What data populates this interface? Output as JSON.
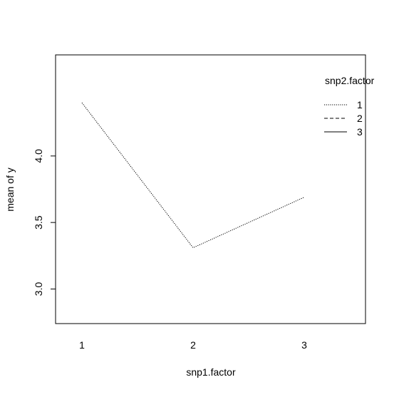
{
  "chart_data": {
    "type": "line",
    "title": "",
    "xlabel": "snp1.factor",
    "ylabel": "mean of  y",
    "categories": [
      "1",
      "2",
      "3"
    ],
    "ylim": [
      2.74,
      4.76
    ],
    "yticks": [
      3.0,
      3.5,
      4.0
    ],
    "ytick_labels": [
      "3.0",
      "3.5",
      "4.0"
    ],
    "legend": {
      "title": "snp2.factor",
      "position": "top-right",
      "entries": [
        {
          "label": "1",
          "dash": "dotted"
        },
        {
          "label": "2",
          "dash": "dashed"
        },
        {
          "label": "3",
          "dash": "solid"
        }
      ]
    },
    "series": [
      {
        "name": "1",
        "dash": "dotted",
        "values": [
          4.4,
          3.31,
          3.69
        ]
      }
    ],
    "grid": false,
    "colors": {
      "line": "#000000",
      "background": "#ffffff"
    }
  }
}
